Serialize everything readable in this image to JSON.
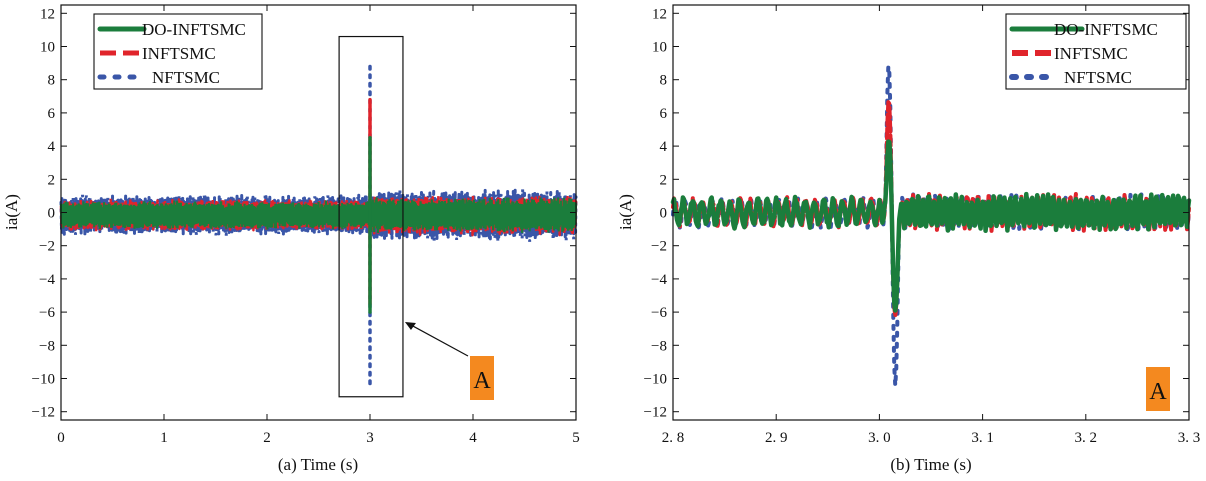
{
  "colors": {
    "do_infstsmc": "#1b7d3c",
    "inftsmc": "#e0242b",
    "nftsmc": "#3a56a8",
    "label_box": "#f4891f"
  },
  "chart_data": [
    {
      "type": "line",
      "xlabel": "(a) Time (s)",
      "ylabel": "ia(A)",
      "xlim": [
        0,
        5
      ],
      "ylim": [
        -12.5,
        12.5
      ],
      "xticks": [
        0,
        1,
        2,
        3,
        4,
        5
      ],
      "xtick_labels": [
        "0",
        "1",
        "2",
        "3",
        "4",
        "5"
      ],
      "yticks": [
        -12,
        -10,
        -8,
        -6,
        -4,
        -2,
        0,
        2,
        4,
        6,
        8,
        10,
        12
      ],
      "ytick_labels": [
        "−12",
        "−10",
        "−8",
        "−6",
        "−4",
        "−2",
        "0",
        "2",
        "4",
        "6",
        "8",
        "10",
        "12"
      ],
      "legend": {
        "placement": "top-left",
        "entries": [
          "DO-INFTSMC",
          "INFTSMC",
          "NFTSMC"
        ]
      },
      "series": [
        {
          "name": "NFTSMC",
          "style": "dotted",
          "band_amplitude": 1.3,
          "spike_range": [
            -10.3,
            8.8
          ]
        },
        {
          "name": "INFTSMC",
          "style": "dashed",
          "band_amplitude": 1.0,
          "spike_range": [
            -5.5,
            6.8
          ]
        },
        {
          "name": "DO-INFTSMC",
          "style": "solid",
          "band_amplitude": 0.9,
          "spike_range": [
            -6.0,
            4.5
          ]
        }
      ],
      "disturbance_time": 3.0,
      "annotation": {
        "label": "A",
        "box_x": [
          2.7,
          3.32
        ],
        "box_y": [
          -11.1,
          10.6
        ],
        "arrow_target": [
          3.32,
          -6.6
        ]
      }
    },
    {
      "type": "line",
      "xlabel": "(b) Time (s)",
      "ylabel": "ia(A)",
      "xlim": [
        2.8,
        3.3
      ],
      "ylim": [
        -12.5,
        12.5
      ],
      "xticks": [
        2.8,
        2.9,
        3.0,
        3.1,
        3.2,
        3.3
      ],
      "xtick_labels": [
        "2. 8",
        "2. 9",
        "3. 0",
        "3. 1",
        "3. 2",
        "3. 3"
      ],
      "yticks": [
        -12,
        -10,
        -8,
        -6,
        -4,
        -2,
        0,
        2,
        4,
        6,
        8,
        10,
        12
      ],
      "ytick_labels": [
        "−12",
        "−10",
        "−8",
        "−6",
        "−4",
        "−2",
        "0",
        "2",
        "4",
        "6",
        "8",
        "10",
        "12"
      ],
      "legend": {
        "placement": "top-right",
        "entries": [
          "DO-INFTSMC",
          "INFTSMC",
          "NFTSMC"
        ]
      },
      "series": [
        {
          "name": "NFTSMC",
          "style": "dotted",
          "peak": 9.2,
          "trough": -10.3
        },
        {
          "name": "INFTSMC",
          "style": "dashed",
          "peak": 7.0,
          "trough": -6.3
        },
        {
          "name": "DO-INFTSMC",
          "style": "solid",
          "peak": 4.5,
          "trough": -6.0
        }
      ],
      "disturbance_time": 3.0,
      "annotation": {
        "label": "A"
      }
    }
  ]
}
